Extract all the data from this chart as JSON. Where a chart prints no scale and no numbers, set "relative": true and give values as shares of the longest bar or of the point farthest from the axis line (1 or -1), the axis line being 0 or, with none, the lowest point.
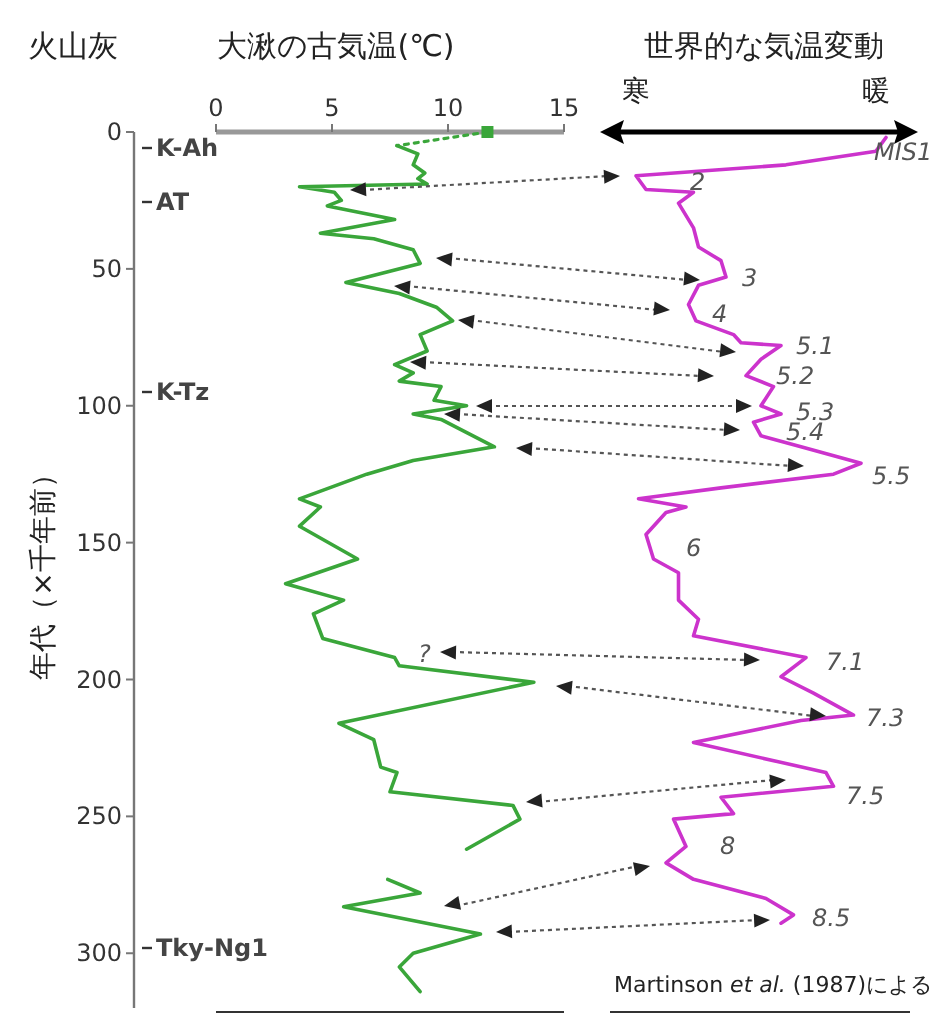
{
  "chart_data": [
    {
      "type": "line",
      "orientation": "horizontal",
      "title": "大湫の古気温(℃)",
      "ylabel": "年代（×千年前）",
      "xlim": [
        0,
        15
      ],
      "xticks": [
        0,
        5,
        10,
        15
      ],
      "ylim": [
        320,
        0
      ],
      "yticks": [
        0,
        50,
        100,
        150,
        200,
        250,
        300
      ],
      "annotations": [
        "火山灰",
        "K-Ah",
        "AT",
        "K-Tz",
        "Tky-Ng1",
        "?"
      ],
      "series": [
        {
          "color": "#3aa63a",
          "x": [
            5,
            8,
            12,
            15,
            17,
            19,
            20,
            22,
            25,
            27,
            32,
            37,
            39,
            43,
            48,
            55,
            59,
            64,
            69,
            74,
            80,
            85,
            88,
            91,
            93,
            98,
            100,
            103,
            105,
            115,
            120,
            125,
            134,
            137,
            144,
            156,
            165,
            171,
            176,
            185,
            192,
            195,
            201,
            216,
            222,
            232,
            234,
            241,
            246,
            251,
            262
          ],
          "values": [
            7.8,
            8.7,
            8.5,
            9.0,
            8.7,
            9.1,
            3.6,
            5.1,
            5.4,
            4.8,
            7.7,
            4.5,
            6.8,
            8.5,
            8.8,
            5.6,
            7.9,
            9.5,
            10.2,
            8.8,
            9.1,
            7.7,
            8.5,
            7.9,
            9.7,
            9.4,
            10.8,
            8.5,
            9.7,
            12.0,
            8.5,
            6.5,
            3.6,
            4.5,
            3.6,
            6.1,
            3.0,
            5.5,
            4.2,
            4.6,
            7.7,
            7.9,
            13.7,
            5.3,
            6.8,
            7.1,
            7.8,
            7.5,
            12.8,
            13.1,
            10.8
          ]
        },
        {
          "color": "#3aa63a",
          "x": [
            273,
            278,
            283,
            293,
            300,
            305,
            314
          ],
          "values": [
            7.4,
            8.8,
            5.5,
            11.4,
            8.5,
            7.9,
            8.8
          ]
        },
        {
          "color": "#3aa63a",
          "line_style": "dotted",
          "x": [
            0,
            5
          ],
          "values": [
            11.7,
            7.8
          ]
        },
        {
          "type": "scatter",
          "marker": "square",
          "color": "#3aa63a",
          "x": [
            0
          ],
          "values": [
            11.7
          ]
        }
      ]
    },
    {
      "type": "line",
      "orientation": "horizontal",
      "relative": true,
      "tick_labels": false,
      "title": "世界的な気温変動",
      "ylim": [
        320,
        0
      ],
      "annotations": [
        "寒",
        "暖",
        "Martinson *et al.* (1987)による",
        "MIS1",
        "2",
        "3",
        "4",
        "5.1",
        "5.2",
        "5.3",
        "5.4",
        "5.5",
        "6",
        "7.1",
        "7.3",
        "7.5",
        "8",
        "8.5"
      ],
      "series": [
        {
          "color": "#cc33cc",
          "x": [
            2,
            7,
            12,
            16,
            21,
            22,
            26,
            35,
            42,
            47,
            53,
            56,
            63,
            69,
            74,
            77,
            78,
            83,
            89,
            93,
            100,
            103,
            106,
            111,
            115,
            121,
            125,
            130,
            134,
            137,
            139,
            147,
            156,
            161,
            171,
            178,
            184,
            192,
            199,
            205,
            213,
            215,
            223,
            234,
            239,
            243,
            249,
            251,
            261,
            267,
            273,
            280,
            286,
            289
          ],
          "values": [
            1.0,
            0.96,
            0.6,
            0.0,
            0.04,
            0.23,
            0.17,
            0.23,
            0.25,
            0.34,
            0.36,
            0.25,
            0.21,
            0.24,
            0.39,
            0.42,
            0.58,
            0.5,
            0.44,
            0.55,
            0.5,
            0.58,
            0.47,
            0.5,
            0.66,
            0.9,
            0.79,
            0.34,
            0.01,
            0.2,
            0.12,
            0.04,
            0.07,
            0.17,
            0.17,
            0.25,
            0.23,
            0.68,
            0.58,
            0.71,
            0.87,
            0.66,
            0.23,
            0.76,
            0.79,
            0.34,
            0.39,
            0.15,
            0.2,
            0.12,
            0.23,
            0.52,
            0.63,
            0.58
          ]
        }
      ]
    }
  ]
}
